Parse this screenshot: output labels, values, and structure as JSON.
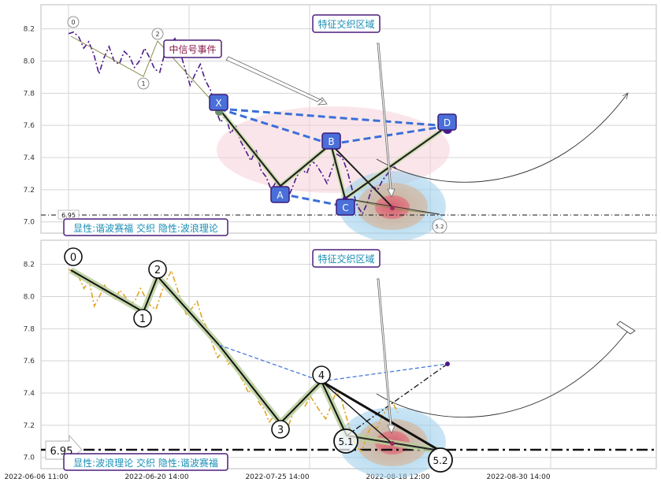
{
  "colors": {
    "harmonic_line": "#4a2a8a",
    "wave_line": "#e0a526",
    "xabcd_dash": "#3b6fd8",
    "node_fill": "#4a6fd8",
    "tag_border": "#4b1f7a",
    "tag_text": "#1a8fb5",
    "event_text": "#8b1a4a"
  },
  "chart_data": [
    {
      "type": "line",
      "name": "top-panel",
      "y_ticks": [
        "8.2",
        "8.0",
        "7.8",
        "7.6",
        "7.4",
        "7.2",
        "7.0"
      ],
      "ylim": [
        6.93,
        8.35
      ],
      "ref_line": {
        "value": 6.95,
        "label": "6.95"
      },
      "annotations": {
        "region_label": "特征交织区域",
        "event_label": "中信号事件",
        "bottom_tag": "显性:谐波赛福 交织 隐性:波浪理论"
      },
      "pattern_points": [
        {
          "label": "X",
          "x": "2022-07-12",
          "y": 7.68
        },
        {
          "label": "A",
          "x": "2022-07-25 14:00",
          "y": 7.13
        },
        {
          "label": "B",
          "x": "2022-08-04",
          "y": 7.42
        },
        {
          "label": "C",
          "x": "2022-08-10",
          "y": 7.0
        },
        {
          "label": "D",
          "x": "2022-08-30",
          "y": 7.54
        }
      ],
      "wave_points": [
        {
          "label": "0",
          "y": 8.17
        },
        {
          "label": "1",
          "y": 7.91
        },
        {
          "label": "2",
          "y": 8.14
        },
        {
          "label": "5.2",
          "y": 6.94
        }
      ],
      "series_y": [
        8.17,
        8.18,
        8.15,
        8.08,
        8.12,
        8.04,
        7.92,
        8.02,
        8.09,
        8.0,
        7.98,
        8.06,
        8.03,
        7.96,
        8.0,
        8.08,
        8.02,
        7.95,
        7.93,
        8.05,
        8.1,
        8.14,
        8.06,
        7.95,
        7.85,
        7.92,
        7.98,
        7.88,
        7.82,
        7.7,
        7.62,
        7.66,
        7.55,
        7.6,
        7.5,
        7.44,
        7.38,
        7.45,
        7.32,
        7.28,
        7.2,
        7.25,
        7.16,
        7.13,
        7.2,
        7.28,
        7.33,
        7.3,
        7.38,
        7.35,
        7.3,
        7.24,
        7.33,
        7.42,
        7.4,
        7.32,
        7.2,
        7.1,
        7.05,
        7.12,
        7.22,
        7.2,
        7.26,
        7.3,
        7.35,
        7.32
      ]
    },
    {
      "type": "line",
      "name": "bottom-panel",
      "y_ticks": [
        "8.2",
        "8.0",
        "7.8",
        "7.6",
        "7.4",
        "7.2",
        "7.0"
      ],
      "ylim": [
        6.93,
        8.35
      ],
      "ref_line": {
        "value": 6.95,
        "label": "6.95"
      },
      "annotations": {
        "region_label": "特征交织区域",
        "bottom_tag": "显性:波浪理论 交织 隐性:谐波赛福"
      },
      "wave_points": [
        {
          "label": "0",
          "y": 8.17
        },
        {
          "label": "1",
          "y": 7.91
        },
        {
          "label": "2",
          "y": 8.17
        },
        {
          "label": "3",
          "y": 7.12
        },
        {
          "label": "4",
          "y": 7.41
        },
        {
          "label": "5.1",
          "y": 7.02
        },
        {
          "label": "5.2",
          "y": 6.95
        }
      ],
      "x_ticks": [
        "2022-06-06 11:00",
        "2022-06-20 14:00",
        "2022-07-25 14:00",
        "2022-08-18 12:00",
        "2022-08-30 14:00"
      ],
      "series_y": [
        8.17,
        8.15,
        8.12,
        8.05,
        8.1,
        7.94,
        8.0,
        8.07,
        8.02,
        7.98,
        8.04,
        8.0,
        7.95,
        7.98,
        8.05,
        7.99,
        7.94,
        7.92,
        8.02,
        8.1,
        8.16,
        8.06,
        7.96,
        7.88,
        7.93,
        7.97,
        7.86,
        7.8,
        7.7,
        7.62,
        7.66,
        7.58,
        7.6,
        7.52,
        7.47,
        7.4,
        7.46,
        7.34,
        7.3,
        7.22,
        7.26,
        7.17,
        7.12,
        7.22,
        7.3,
        7.36,
        7.32,
        7.38,
        7.33,
        7.28,
        7.24,
        7.32,
        7.41,
        7.36,
        7.25,
        7.14,
        7.06,
        7.04,
        7.14,
        7.2,
        7.18,
        7.26,
        7.3,
        7.34,
        7.28
      ]
    }
  ]
}
